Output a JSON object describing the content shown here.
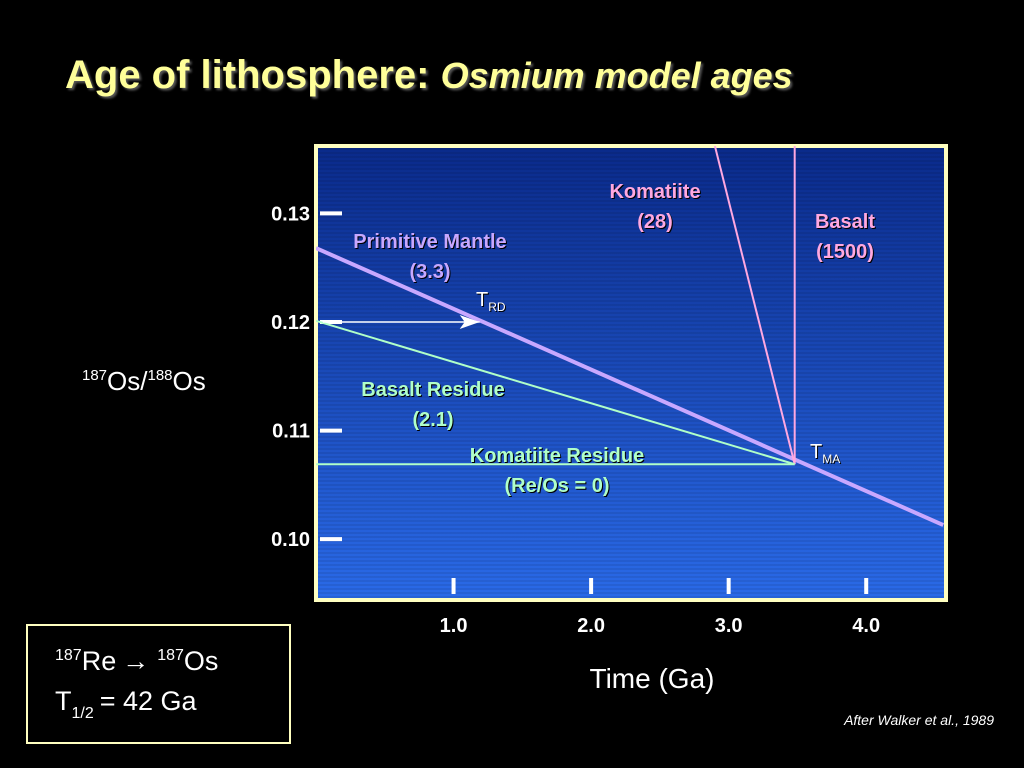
{
  "title": {
    "main": "Age of lithosphere:",
    "italic": "Osmium model ages"
  },
  "chart_data": {
    "type": "line",
    "x_label": "Time (Ga)",
    "y_label": [
      "187",
      "Os/",
      "188",
      "Os"
    ],
    "xlim": [
      0,
      4.58
    ],
    "ylim": [
      0.0944,
      0.1362
    ],
    "xticks": [
      {
        "value": 1,
        "label": "1.0"
      },
      {
        "value": 2,
        "label": "2.0"
      },
      {
        "value": 3,
        "label": "3.0"
      },
      {
        "value": 4,
        "label": "4.0"
      }
    ],
    "yticks": [
      {
        "value": 0.1,
        "label": "0.10"
      },
      0.11,
      0.12,
      0.13
    ],
    "series": [
      {
        "name": "Primitive Mantle",
        "ratio": "(3.3)",
        "color": "#c8a8ff",
        "x": [
          0,
          4.56
        ],
        "values": [
          0.1268,
          0.1013
        ]
      },
      {
        "name": "Komatiite",
        "ratio": "(28)",
        "color": "#ffa8e0",
        "x": [
          2.9,
          3.48
        ],
        "values": [
          0.1362,
          0.1069
        ]
      },
      {
        "name": "Basalt",
        "ratio": "(1500)",
        "color": "#ffa8e0",
        "x": [
          3.48,
          3.48
        ],
        "values": [
          0.1362,
          0.1069
        ]
      },
      {
        "name": "Basalt Residue",
        "ratio": "(2.1)",
        "color": "#b0ffc8",
        "x": [
          0,
          3.48
        ],
        "values": [
          0.1201,
          0.1069
        ]
      },
      {
        "name": "Komatiite Residue",
        "ratio": "(Re/Os = 0)",
        "color": "#b0ffc8",
        "x": [
          0,
          3.48
        ],
        "values": [
          0.1069,
          0.1069
        ]
      }
    ],
    "arrow": {
      "x": [
        0.05,
        1.19
      ],
      "values": [
        0.12,
        0.12
      ]
    },
    "annotations": [
      {
        "text": "T",
        "sub": "RD"
      },
      {
        "text": "T",
        "sub": "MA"
      }
    ],
    "source": "After Walker et al., 1989"
  },
  "decay_box": {
    "parent_mass": "187",
    "parent": "Re",
    "arrow": "→",
    "daughter_mass": "187",
    "daughter": "Os",
    "half_life": "T",
    "half_sub": "1/2",
    "half_value": "= 42 Ga"
  }
}
